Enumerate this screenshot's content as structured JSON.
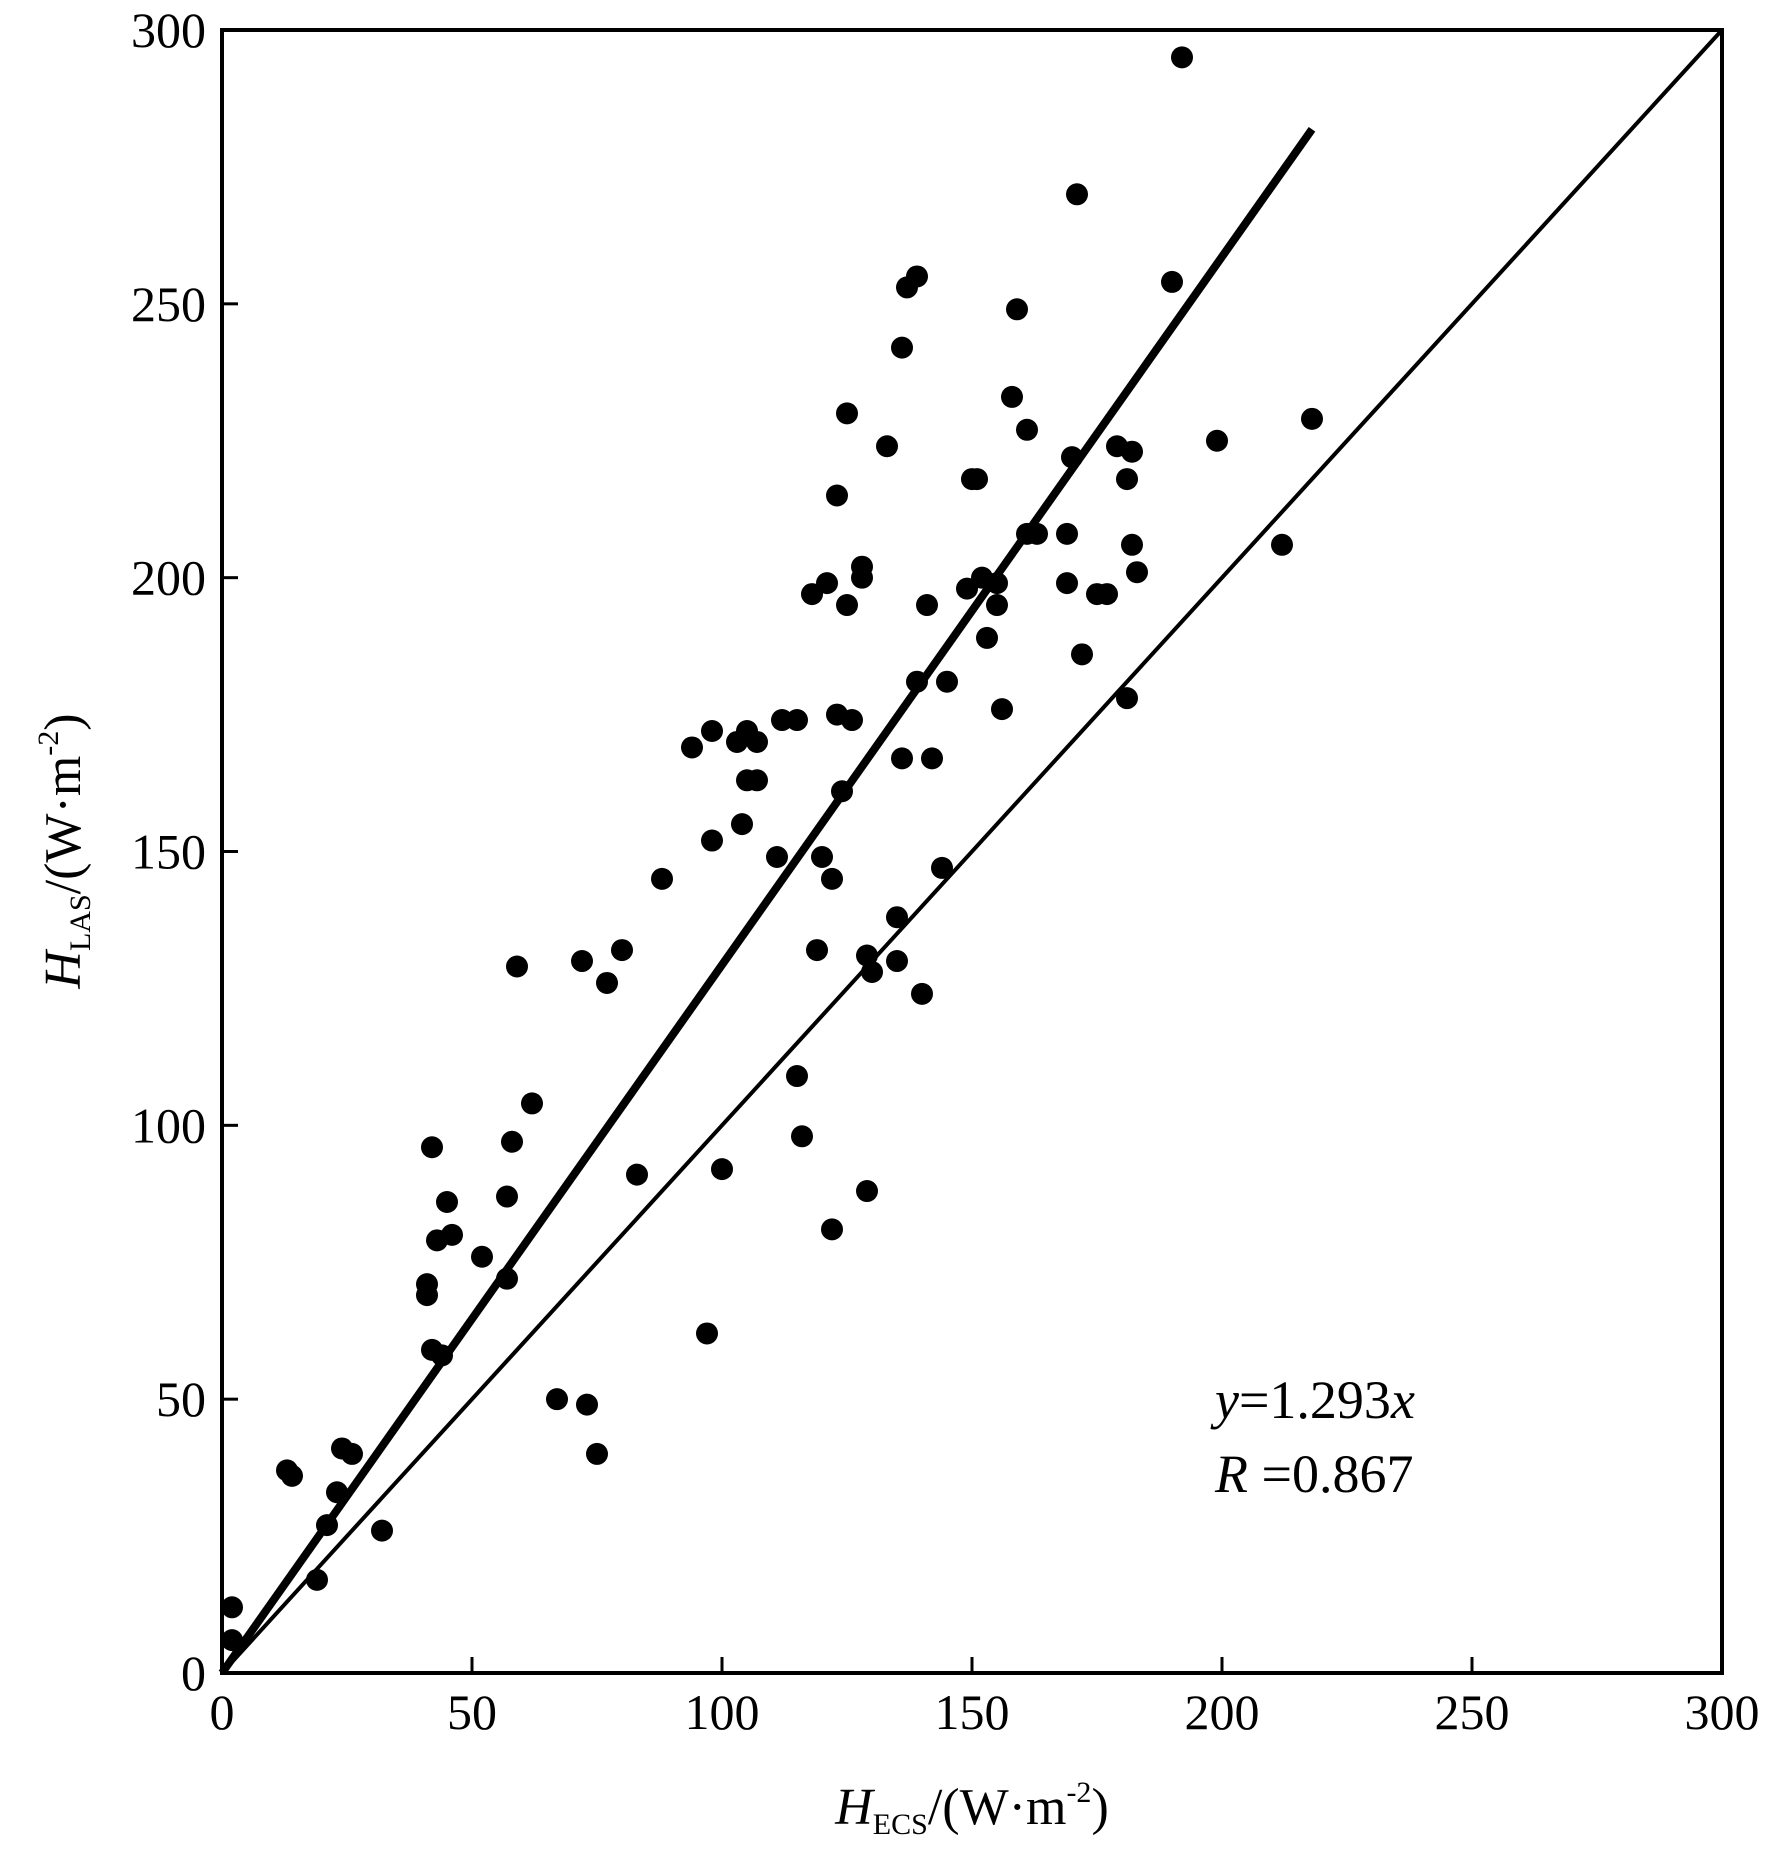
{
  "chart_data": {
    "type": "scatter",
    "title": "",
    "xlabel": {
      "main": "H",
      "sub": "ECS",
      "rest": "/(W·m",
      "sup": "-2",
      "close": ")"
    },
    "ylabel": {
      "main": "H",
      "sub": "LAS",
      "rest": "/(W·m",
      "sup": "-2",
      "close": ")"
    },
    "xlim": [
      0,
      300
    ],
    "ylim": [
      0,
      300
    ],
    "xticks": [
      "0",
      "50",
      "100",
      "150",
      "200",
      "250",
      "300"
    ],
    "yticks": [
      "0",
      "50",
      "100",
      "150",
      "200",
      "250",
      "300"
    ],
    "grid": false,
    "annotation": {
      "line1_var": "y",
      "line1_eq": "=1.293",
      "line1_x": "x",
      "line2_var": "R",
      "line2_eq": " =0.867"
    },
    "fit_line": {
      "slope": 1.293,
      "x_range": [
        0,
        218
      ]
    },
    "reference_line": {
      "slope": 1,
      "x_range": [
        0,
        300
      ]
    },
    "points": [
      [
        2,
        12
      ],
      [
        2,
        6
      ],
      [
        13,
        37
      ],
      [
        14,
        36
      ],
      [
        19,
        17
      ],
      [
        21,
        27
      ],
      [
        23,
        33
      ],
      [
        24,
        41
      ],
      [
        26,
        40
      ],
      [
        32,
        26
      ],
      [
        41,
        71
      ],
      [
        41,
        69
      ],
      [
        42,
        96
      ],
      [
        42,
        59
      ],
      [
        43,
        79
      ],
      [
        44,
        58
      ],
      [
        45,
        86
      ],
      [
        46,
        80
      ],
      [
        52,
        76
      ],
      [
        57,
        72
      ],
      [
        57,
        87
      ],
      [
        58,
        97
      ],
      [
        59,
        129
      ],
      [
        62,
        104
      ],
      [
        67,
        50
      ],
      [
        72,
        130
      ],
      [
        73,
        49
      ],
      [
        75,
        40
      ],
      [
        77,
        126
      ],
      [
        80,
        132
      ],
      [
        83,
        91
      ],
      [
        88,
        145
      ],
      [
        94,
        169
      ],
      [
        97,
        62
      ],
      [
        98,
        172
      ],
      [
        98,
        152
      ],
      [
        100,
        92
      ],
      [
        103,
        170
      ],
      [
        104,
        155
      ],
      [
        105,
        172
      ],
      [
        105,
        163
      ],
      [
        107,
        163
      ],
      [
        107,
        170
      ],
      [
        111,
        149
      ],
      [
        112,
        174
      ],
      [
        115,
        174
      ],
      [
        115,
        109
      ],
      [
        116,
        98
      ],
      [
        118,
        197
      ],
      [
        119,
        132
      ],
      [
        120,
        149
      ],
      [
        121,
        199
      ],
      [
        122,
        145
      ],
      [
        122,
        81
      ],
      [
        123,
        215
      ],
      [
        123,
        175
      ],
      [
        124,
        161
      ],
      [
        125,
        230
      ],
      [
        125,
        195
      ],
      [
        126,
        174
      ],
      [
        128,
        202
      ],
      [
        128,
        200
      ],
      [
        129,
        131
      ],
      [
        129,
        88
      ],
      [
        130,
        128
      ],
      [
        133,
        224
      ],
      [
        135,
        130
      ],
      [
        135,
        138
      ],
      [
        136,
        242
      ],
      [
        136,
        167
      ],
      [
        137,
        253
      ],
      [
        139,
        255
      ],
      [
        139,
        181
      ],
      [
        140,
        124
      ],
      [
        141,
        195
      ],
      [
        142,
        167
      ],
      [
        144,
        147
      ],
      [
        145,
        181
      ],
      [
        149,
        198
      ],
      [
        150,
        218
      ],
      [
        151,
        218
      ],
      [
        152,
        200
      ],
      [
        153,
        189
      ],
      [
        155,
        199
      ],
      [
        155,
        195
      ],
      [
        156,
        176
      ],
      [
        158,
        233
      ],
      [
        159,
        249
      ],
      [
        161,
        227
      ],
      [
        161,
        208
      ],
      [
        163,
        208
      ],
      [
        169,
        208
      ],
      [
        169,
        199
      ],
      [
        170,
        222
      ],
      [
        171,
        270
      ],
      [
        172,
        186
      ],
      [
        175,
        197
      ],
      [
        177,
        197
      ],
      [
        179,
        224
      ],
      [
        181,
        218
      ],
      [
        181,
        178
      ],
      [
        182,
        223
      ],
      [
        182,
        206
      ],
      [
        183,
        201
      ],
      [
        190,
        254
      ],
      [
        192,
        295
      ],
      [
        199,
        225
      ],
      [
        212,
        206
      ],
      [
        218,
        229
      ]
    ]
  }
}
